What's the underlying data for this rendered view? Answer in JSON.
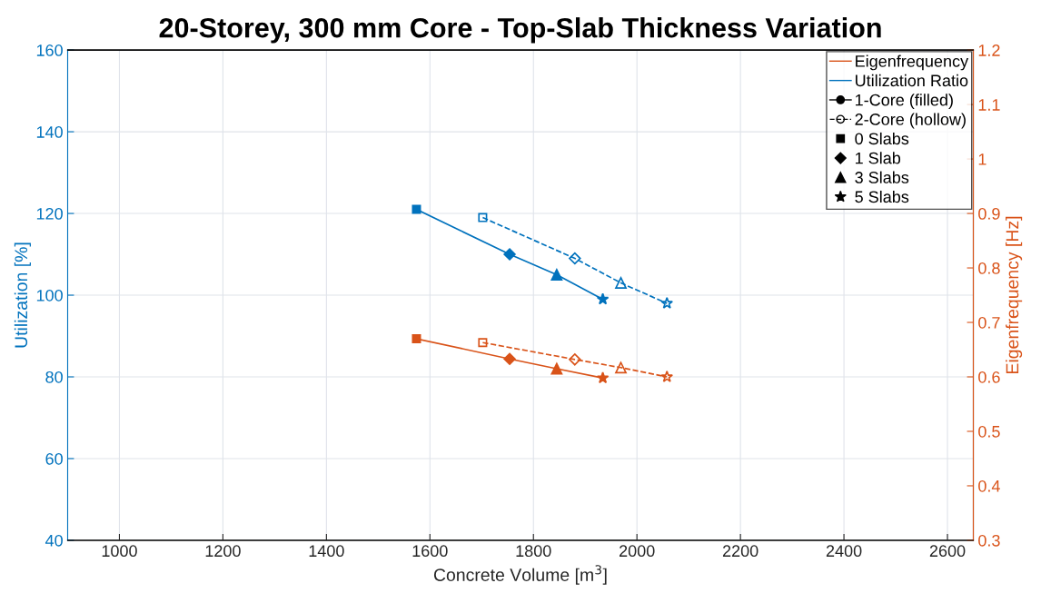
{
  "chart_data": {
    "type": "line",
    "title": "20-Storey, 300 mm Core - Top-Slab Thickness Variation",
    "xlabel": "Concrete Volume [m$^{3}$]",
    "ylabel": "Utilization [%]",
    "y2label": "Eigenfrequency [Hz]",
    "xlim": [
      900,
      2650
    ],
    "xticks": [
      1000,
      1200,
      1400,
      1600,
      1800,
      2000,
      2200,
      2400,
      2600
    ],
    "ylim": [
      40,
      160
    ],
    "yticks": [
      40,
      60,
      80,
      100,
      120,
      140,
      160
    ],
    "y2lim": [
      0.3,
      1.2
    ],
    "y2ticks": [
      0.3,
      0.4,
      0.5,
      0.6,
      0.7,
      0.8,
      0.9,
      1,
      1.1,
      1.2
    ],
    "grid": true,
    "legend": "top right",
    "series": [
      {
        "color": "#0072bd",
        "line_style": "solid",
        "marker": [
          "square",
          "diamond",
          "triangle",
          "star"
        ],
        "x": [
          1574,
          1754,
          1845,
          1934
        ],
        "values": [
          121,
          110,
          105,
          99
        ]
      },
      {
        "color": "#0072bd",
        "line_style": "dashed",
        "marker": [
          "square",
          "diamond",
          "triangle",
          "star"
        ],
        "x": [
          1702,
          1880,
          1969,
          2058
        ],
        "values": [
          119,
          109,
          103,
          98
        ]
      },
      {
        "color": "#d95319",
        "axis": "y2",
        "line_style": "solid",
        "marker": [
          "square",
          "diamond",
          "triangle",
          "star"
        ],
        "x": [
          1574,
          1754,
          1845,
          1934
        ],
        "values": [
          0.67,
          0.633,
          0.615,
          0.598
        ]
      },
      {
        "color": "#d95319",
        "axis": "y2",
        "line_style": "dashed",
        "marker": [
          "square",
          "diamond",
          "triangle",
          "star"
        ],
        "x": [
          1702,
          1880,
          1969,
          2058
        ],
        "values": [
          0.663,
          0.632,
          0.617,
          0.6
        ]
      },
      {
        "name": "Eigenfrequency",
        "color": "#d95319",
        "line_style": "solid",
        "marker": "none"
      },
      {
        "name": "Utilization Ratio",
        "color": "#0072bd",
        "line_style": "solid",
        "marker": "none"
      },
      {
        "name": "1-Core (filled)",
        "color": "#000000",
        "line_style": "solid",
        "marker": "circle"
      },
      {
        "name": "2-Core (hollow)",
        "color": "#000000",
        "line_style": "dashed",
        "marker": "circle"
      },
      {
        "name": "0 Slabs",
        "color": "#000000",
        "line_style": "none",
        "marker": "square"
      },
      {
        "name": "1 Slab",
        "color": "#000000",
        "line_style": "none",
        "marker": "diamond"
      },
      {
        "name": "3 Slabs",
        "color": "#000000",
        "line_style": "none",
        "marker": "triangle"
      },
      {
        "name": "5 Slabs",
        "color": "#000000",
        "line_style": "none",
        "marker": "star"
      }
    ]
  }
}
